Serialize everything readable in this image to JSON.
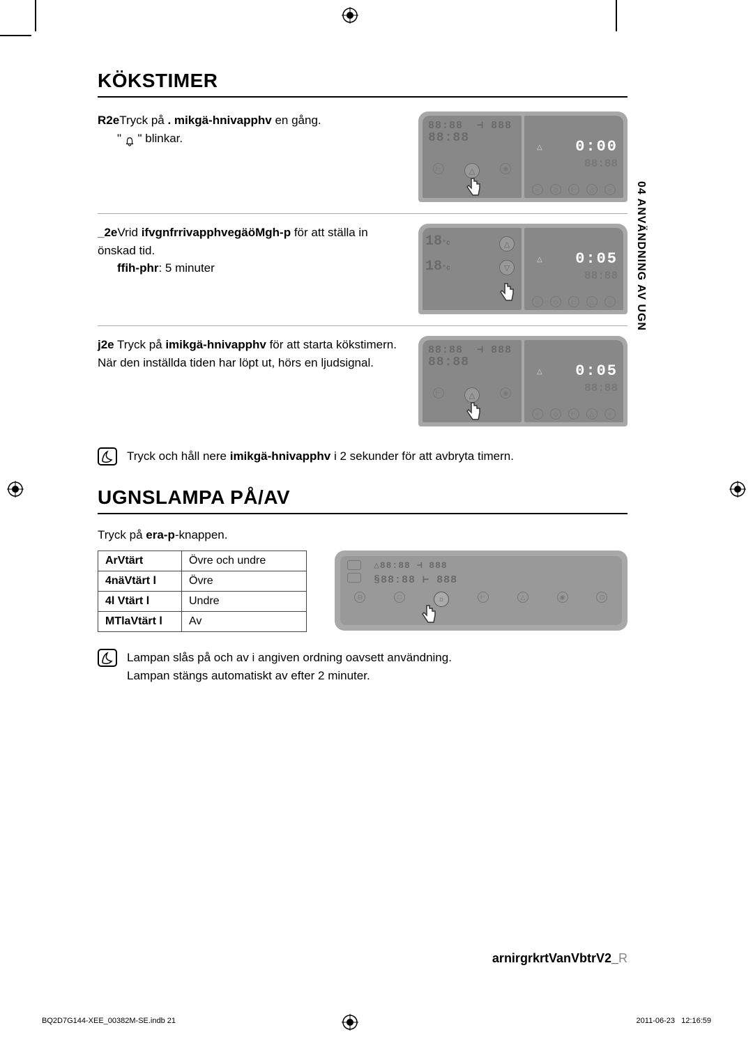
{
  "sidebar": "04  ANVÄNDNING AV UGN",
  "section1": {
    "title": "KÖKSTIMER",
    "step1": {
      "prefix": "R2e",
      "text1": "Tryck på ",
      "bold1": ". mikgä-hnivapphv",
      "text2": " en gång.",
      "line2a": "\" ",
      "line2b": " \" blinkar.",
      "display": "0:00"
    },
    "step2": {
      "prefix": "_2e",
      "text1": "Vrid ",
      "bold1": "ifvgnfrrivapphvegäöMgh-p",
      "text2": " för att ställa in önskad tid.",
      "line3_bold": "ffih-phr",
      "line3_rest": ": 5 minuter",
      "display": "0:05"
    },
    "step3": {
      "prefix": "j2e",
      "text1": " Tryck på ",
      "bold1": "imikgä-hnivapphv",
      "text2": " för att starta kökstimern. När den inställda tiden har löpt ut, hörs en ljudsignal.",
      "display": "0:05"
    },
    "note": {
      "text1": "Tryck och håll nere ",
      "bold1": "imikgä-hnivapphv",
      "text2": " i 2 sekunder för att avbryta timern."
    }
  },
  "section2": {
    "title": "UGNSLAMPA PÅ/AV",
    "intro_text1": "Tryck på ",
    "intro_bold": "era-p",
    "intro_text2": "-knappen.",
    "table": {
      "rows": [
        {
          "label": "ArVtärt",
          "value": "Övre och undre"
        },
        {
          "label": "4näVtärt l",
          "value": "Övre"
        },
        {
          "label": "4l Vtärt l",
          "value": "Undre"
        },
        {
          "label": "MTlaVtärt l",
          "value": "Av"
        }
      ]
    },
    "note": {
      "line1": "Lampan slås på och av i angiven ordning oavsett användning.",
      "line2": "Lampan stängs automatiskt av efter 2 minuter."
    }
  },
  "footer": {
    "bold": "arnirgrkrtVanVbtrV2_",
    "grey": "R"
  },
  "print": {
    "left": "BQ2D7G144-XEE_00382M-SE.indb   21",
    "date": "2011-06-23",
    "time": "12:16:59"
  },
  "ghost_display": "88:88",
  "ghost_temp": "888",
  "colors": {
    "panel_bg": "#a8a8a8",
    "panel_inner": "#888888"
  }
}
